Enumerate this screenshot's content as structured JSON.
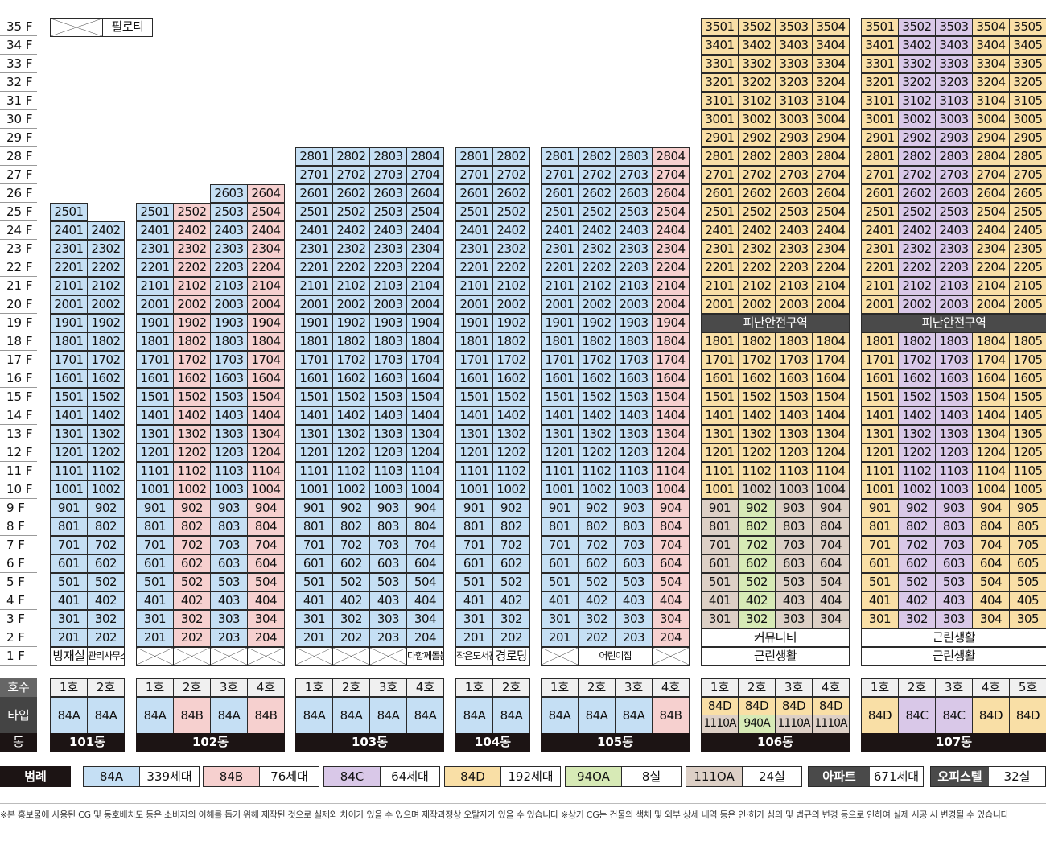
{
  "floors": [
    "35 F",
    "34 F",
    "33 F",
    "32 F",
    "31 F",
    "30 F",
    "29 F",
    "28 F",
    "27 F",
    "26 F",
    "25 F",
    "24 F",
    "23 F",
    "22 F",
    "21 F",
    "20 F",
    "19 F",
    "18 F",
    "17 F",
    "16 F",
    "15 F",
    "14 F",
    "13 F",
    "12 F",
    "11 F",
    "10 F",
    "9 F",
    "8 F",
    "7 F",
    "6 F",
    "5 F",
    "4 F",
    "3 F",
    "2 F",
    "1 F"
  ],
  "row_labels": {
    "unit": "호수",
    "type": "타입",
    "building": "동"
  },
  "piloti_label": "필로티",
  "buildings": [
    {
      "name": "101동",
      "units": [
        "1호",
        "2호"
      ],
      "types": [
        [
          "84A"
        ],
        [
          "84A"
        ]
      ],
      "maxFloors": [
        25,
        24
      ],
      "ground": [
        "방재실",
        "관리사무소"
      ]
    },
    {
      "name": "102동",
      "units": [
        "1호",
        "2호",
        "3호",
        "4호"
      ],
      "types": [
        [
          "84A"
        ],
        [
          "84B"
        ],
        [
          "84A"
        ],
        [
          "84B"
        ]
      ],
      "maxFloors": [
        25,
        25,
        26,
        26
      ],
      "ground": [
        "X",
        "X",
        "X",
        "X"
      ]
    },
    {
      "name": "103동",
      "units": [
        "1호",
        "2호",
        "3호",
        "4호"
      ],
      "types": [
        [
          "84A"
        ],
        [
          "84A"
        ],
        [
          "84A"
        ],
        [
          "84A"
        ]
      ],
      "maxFloors": [
        28,
        28,
        28,
        28
      ],
      "ground": [
        "X",
        "X",
        "X",
        "다함께돌봄"
      ]
    },
    {
      "name": "104동",
      "units": [
        "1호",
        "2호"
      ],
      "types": [
        [
          "84A"
        ],
        [
          "84A"
        ]
      ],
      "maxFloors": [
        28,
        28
      ],
      "ground": [
        "작은도서관",
        "경로당"
      ]
    },
    {
      "name": "105동",
      "units": [
        "1호",
        "2호",
        "3호",
        "4호"
      ],
      "types": [
        [
          "84A"
        ],
        [
          "84A"
        ],
        [
          "84A"
        ],
        [
          "84B"
        ]
      ],
      "maxFloors": [
        28,
        28,
        28,
        28
      ],
      "ground": [
        "X",
        "어린이집",
        "어린이집",
        "X"
      ]
    },
    {
      "name": "106동",
      "units": [
        "1호",
        "2호",
        "3호",
        "4호"
      ],
      "types": [
        [
          "84D",
          "1110A"
        ],
        [
          "84D",
          "940A"
        ],
        [
          "84D",
          "1110A"
        ],
        [
          "84D",
          "1110A"
        ]
      ],
      "maxFloors": [
        35,
        35,
        35,
        35
      ],
      "refuge": "피난안전구역",
      "second": "커뮤니티",
      "first": "근린생활"
    },
    {
      "name": "107동",
      "units": [
        "1호",
        "2호",
        "3호",
        "4호",
        "5호"
      ],
      "types": [
        [
          "84D"
        ],
        [
          "84C"
        ],
        [
          "84C"
        ],
        [
          "84D"
        ],
        [
          "84D"
        ]
      ],
      "maxFloors": [
        35,
        35,
        35,
        35,
        35
      ],
      "refuge": "피난안전구역",
      "second": "근린생활",
      "first": "근린생활"
    }
  ],
  "legend": {
    "title": "범례",
    "items": [
      {
        "type": "84A",
        "count": "339세대",
        "color": "#c5dff4"
      },
      {
        "type": "84B",
        "count": "76세대",
        "color": "#f6d0cf"
      },
      {
        "type": "84C",
        "count": "64세대",
        "color": "#d9c8e8"
      },
      {
        "type": "84D",
        "count": "192세대",
        "color": "#f9dfa6"
      },
      {
        "type": "94OA",
        "count": "8실",
        "color": "#d7eab6"
      },
      {
        "type": "111OA",
        "count": "24실",
        "color": "#ddd0c6"
      }
    ],
    "totals": [
      {
        "label": "아파트",
        "count": "671세대"
      },
      {
        "label": "오피스텔",
        "count": "32실"
      }
    ]
  },
  "note": "※본 홍보물에 사용된 CG 및 동호배치도 등은 소비자의 이해를 돕기 위해 제작된 것으로 실제와 차이가 있을 수 있으며 제작과정상 오탈자가 있을 수 있습니다 ※상기 CG는 건물의 색채 및 외부 상세 내역 등은 인·허가 심의 및 법규의 변경 등으로 인하여 실제 시공 시 변경될 수 있습니다"
}
